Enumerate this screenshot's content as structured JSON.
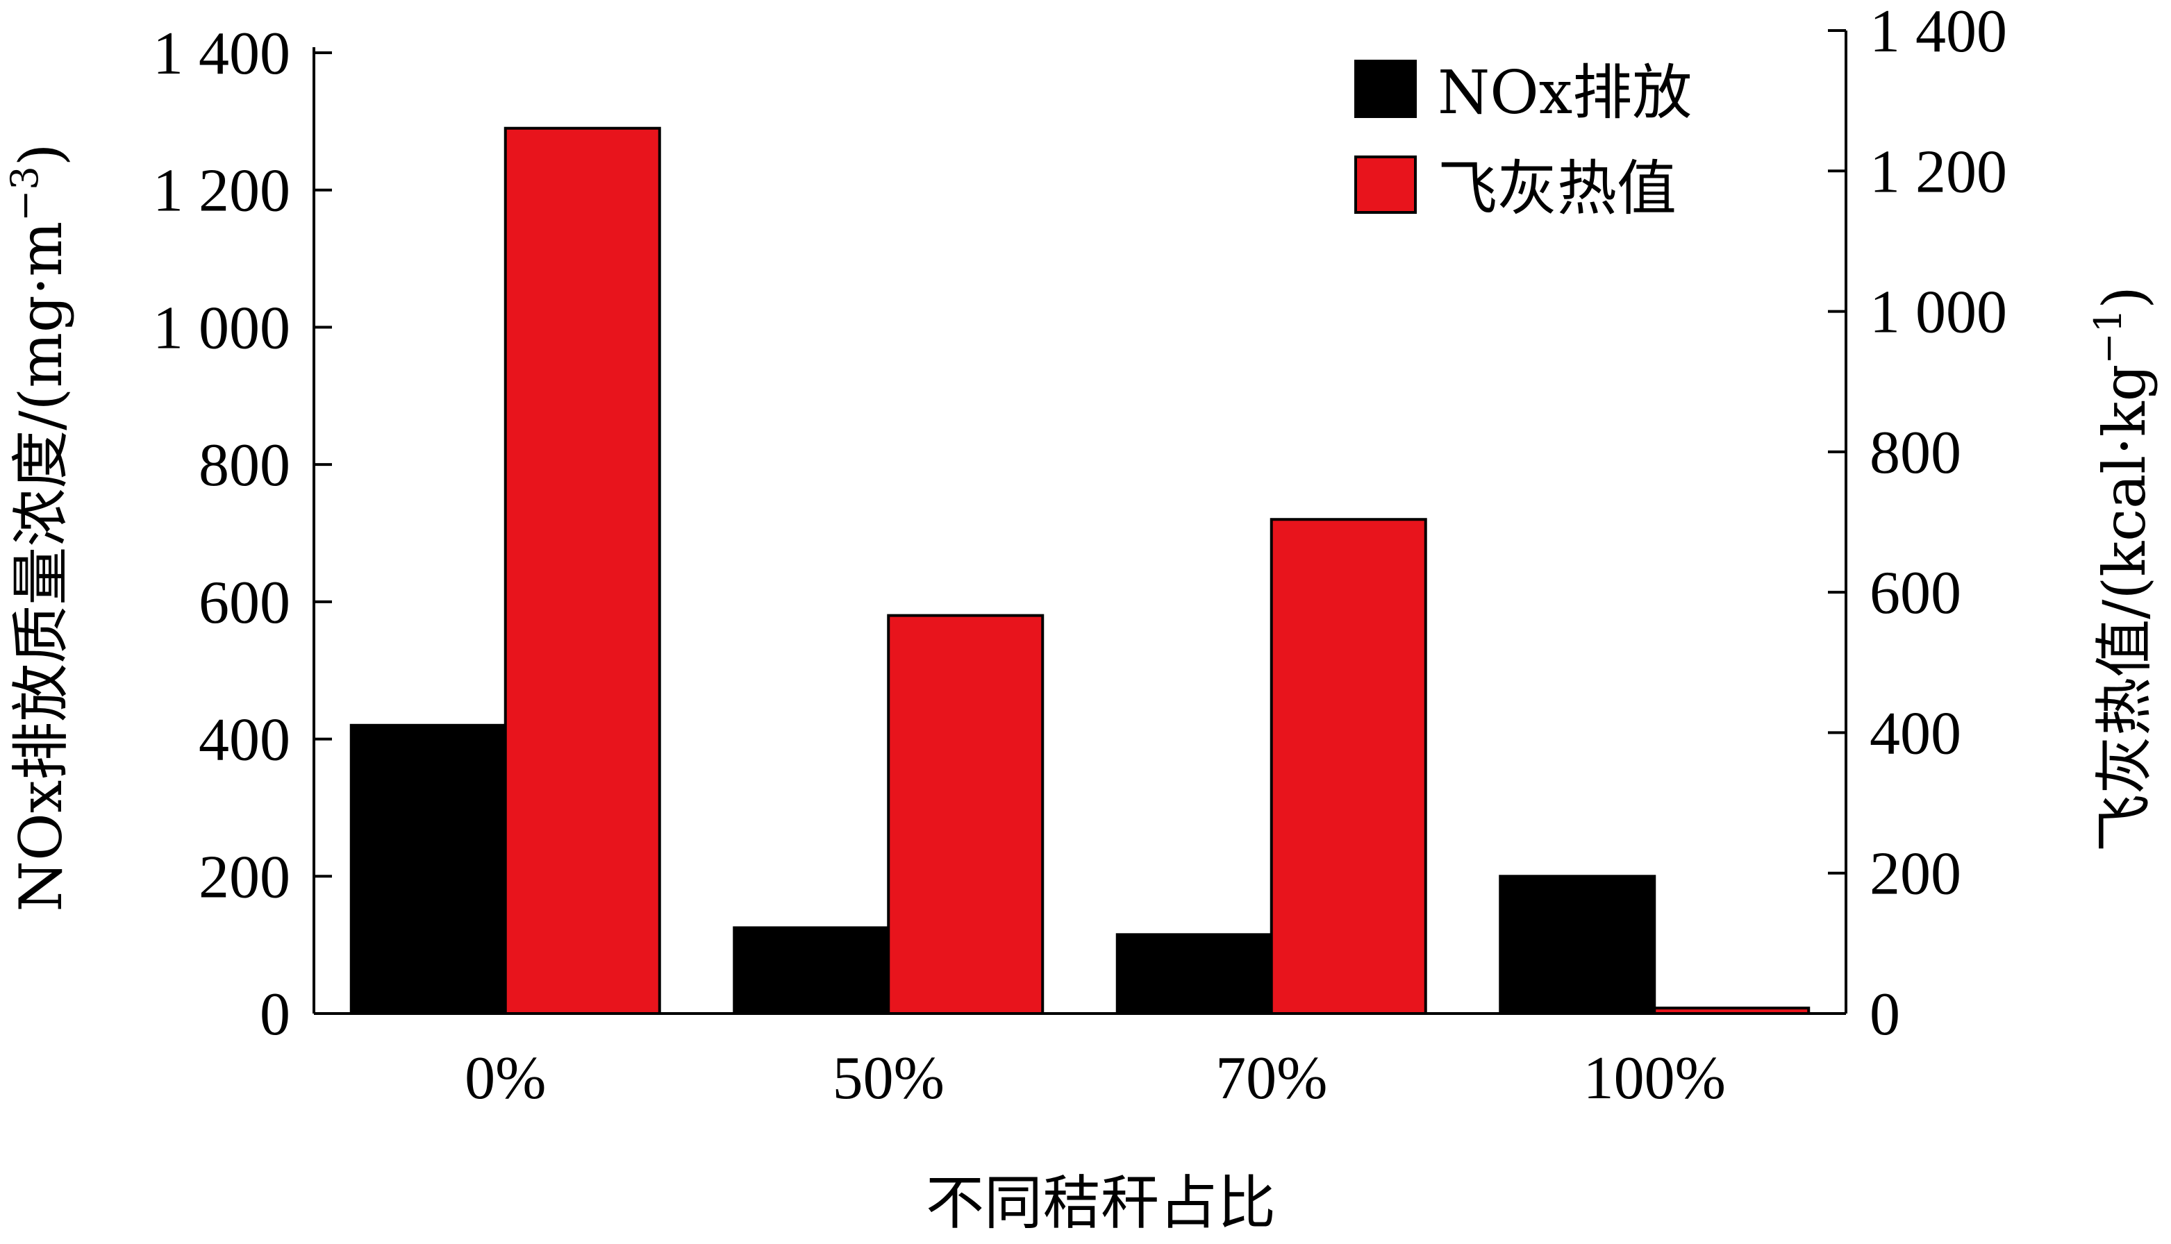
{
  "chart_data": {
    "type": "bar",
    "categories": [
      "0%",
      "50%",
      "70%",
      "100%"
    ],
    "series": [
      {
        "name": "NOx排放",
        "axis": "left",
        "color": "#000000",
        "values": [
          420,
          125,
          115,
          200
        ]
      },
      {
        "name": "飞灰热值",
        "axis": "right",
        "color": "#e8141c",
        "values": [
          1290,
          580,
          720,
          8
        ]
      }
    ],
    "xlabel": "不同秸秆占比",
    "ylabel_left": "NOx排放质量浓度/(mg·m",
    "ylabel_left_sup": "−3",
    "ylabel_left_close": ")",
    "ylabel_right": "飞灰热值/(kcal·kg",
    "ylabel_right_sup": "−1",
    "ylabel_right_close": ")",
    "ylim_left": [
      0,
      1400
    ],
    "ylim_right": [
      0,
      1400
    ],
    "yticks_left": [
      "0",
      "200",
      "400",
      "600",
      "800",
      "1 000",
      "1 200",
      "1 400"
    ],
    "yticks_right": [
      "0",
      "200",
      "400",
      "600",
      "800",
      "1 000",
      "1 200",
      "1 400"
    ],
    "grid": false,
    "legend_position": "top-right"
  }
}
